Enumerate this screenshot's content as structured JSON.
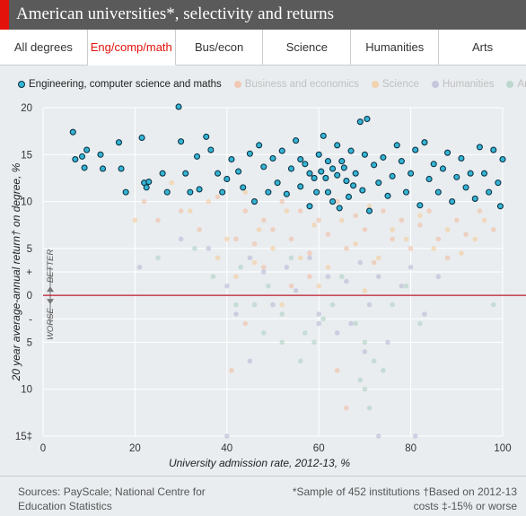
{
  "header": {
    "title": "American universities*, selectivity and returns"
  },
  "tabs": [
    {
      "label": "All degrees",
      "active": false
    },
    {
      "label": "Eng/comp/math",
      "active": true
    },
    {
      "label": "Bus/econ",
      "active": false
    },
    {
      "label": "Science",
      "active": false
    },
    {
      "label": "Humanities",
      "active": false
    },
    {
      "label": "Arts",
      "active": false
    }
  ],
  "colors": {
    "accent": "#e3120b",
    "highlight_fill": "#35b5d5",
    "highlight_stroke": "#0d3446",
    "business": "#f3b89a",
    "science": "#f6c891",
    "humanities": "#b7b3d3",
    "arts": "#a9cdbf",
    "zero_line": "#c0172a"
  },
  "chart_data": {
    "type": "scatter",
    "title": "American universities*, selectivity and returns",
    "xlabel": "University admission rate, 2012-13, %",
    "ylabel": "20 year average-annual return† on degree, %",
    "xlim": [
      0,
      100
    ],
    "ylim": [
      -15,
      20
    ],
    "x_ticks": [
      "0",
      "20",
      "40",
      "60",
      "80",
      "100"
    ],
    "y_ticks": [
      {
        "value": 20,
        "label": "20"
      },
      {
        "value": 15,
        "label": "15"
      },
      {
        "value": 10,
        "label": "10"
      },
      {
        "value": 5,
        "label": "5"
      },
      {
        "value": 2.5,
        "label": "+"
      },
      {
        "value": 0,
        "label": "0"
      },
      {
        "value": -2.5,
        "label": "-"
      },
      {
        "value": -5,
        "label": "5"
      },
      {
        "value": -10,
        "label": "10"
      },
      {
        "value": -15,
        "label": "15‡"
      }
    ],
    "better_label": "BETTER",
    "worse_label": "WORSE",
    "grid": true,
    "legend_position": "top",
    "highlighted_series": "Engineering, computer science and maths",
    "series": [
      {
        "name": "Engineering, computer science and maths",
        "key": "eng",
        "points": [
          [
            6.5,
            17.4
          ],
          [
            7,
            14.5
          ],
          [
            8.5,
            14.8
          ],
          [
            9,
            13.6
          ],
          [
            9.5,
            15.5
          ],
          [
            12.5,
            15
          ],
          [
            13,
            13.5
          ],
          [
            16.5,
            16.3
          ],
          [
            17,
            13.5
          ],
          [
            18,
            11
          ],
          [
            21.5,
            16.8
          ],
          [
            22,
            12
          ],
          [
            22.5,
            11.5
          ],
          [
            23,
            12.1
          ],
          [
            26,
            13
          ],
          [
            27,
            11
          ],
          [
            29.5,
            20.1
          ],
          [
            30,
            16.4
          ],
          [
            31,
            13
          ],
          [
            32,
            11
          ],
          [
            33.5,
            14.8
          ],
          [
            34,
            11.3
          ],
          [
            35.5,
            16.9
          ],
          [
            36.5,
            15.5
          ],
          [
            38,
            13
          ],
          [
            39,
            11
          ],
          [
            40,
            12.4
          ],
          [
            41,
            14.5
          ],
          [
            42.5,
            13.2
          ],
          [
            43.5,
            11.5
          ],
          [
            45,
            15.1
          ],
          [
            46,
            10
          ],
          [
            47,
            16
          ],
          [
            48,
            13.7
          ],
          [
            49,
            11
          ],
          [
            50,
            14.6
          ],
          [
            51,
            12
          ],
          [
            52,
            15.4
          ],
          [
            53,
            10.8
          ],
          [
            54,
            13.5
          ],
          [
            55,
            16.5
          ],
          [
            56,
            11.6
          ],
          [
            57,
            14
          ],
          [
            58,
            9.5
          ],
          [
            59,
            12.5
          ],
          [
            60,
            15
          ],
          [
            61,
            17
          ],
          [
            62,
            11
          ],
          [
            63,
            13.5
          ],
          [
            64,
            16
          ],
          [
            64.5,
            9.3
          ],
          [
            65,
            14.3
          ],
          [
            66,
            12.2
          ],
          [
            66.5,
            10.5
          ],
          [
            67,
            15.4
          ],
          [
            68,
            13
          ],
          [
            69,
            18.5
          ],
          [
            69.5,
            11.2
          ],
          [
            70,
            15
          ],
          [
            70.5,
            18.8
          ],
          [
            71,
            9
          ],
          [
            72,
            13.9
          ],
          [
            73,
            12
          ],
          [
            74,
            14.7
          ],
          [
            75,
            10.6
          ],
          [
            76,
            12.7
          ],
          [
            77,
            16
          ],
          [
            78,
            14.3
          ],
          [
            79,
            11
          ],
          [
            80,
            13
          ],
          [
            81,
            15.5
          ],
          [
            82,
            9.6
          ],
          [
            83,
            16.3
          ],
          [
            84,
            12.4
          ],
          [
            85,
            14
          ],
          [
            86,
            11
          ],
          [
            87,
            13.5
          ],
          [
            88,
            15.2
          ],
          [
            89,
            10
          ],
          [
            90,
            12.6
          ],
          [
            91,
            14.6
          ],
          [
            92,
            11.5
          ],
          [
            93,
            13
          ],
          [
            94,
            10.3
          ],
          [
            95,
            15.8
          ],
          [
            96,
            13
          ],
          [
            97,
            11
          ],
          [
            98,
            15.5
          ],
          [
            99,
            12
          ],
          [
            99.5,
            9.5
          ],
          [
            100,
            14.5
          ],
          [
            62,
            14.3
          ],
          [
            63,
            10
          ],
          [
            58,
            13
          ],
          [
            56,
            14.5
          ],
          [
            61.5,
            12.5
          ],
          [
            59.5,
            11
          ],
          [
            65.5,
            13.6
          ],
          [
            67.5,
            11.7
          ],
          [
            64,
            12.8
          ],
          [
            60.5,
            13.2
          ]
        ]
      },
      {
        "name": "Business and economics",
        "key": "bus",
        "points": [
          [
            22,
            10
          ],
          [
            25,
            8
          ],
          [
            30,
            9
          ],
          [
            34,
            7
          ],
          [
            38,
            10.5
          ],
          [
            42,
            6
          ],
          [
            44,
            9
          ],
          [
            46,
            5.5
          ],
          [
            48,
            8
          ],
          [
            50,
            7
          ],
          [
            52,
            10
          ],
          [
            54,
            6
          ],
          [
            56,
            9
          ],
          [
            58,
            4.5
          ],
          [
            60,
            8
          ],
          [
            62,
            6.5
          ],
          [
            64,
            10
          ],
          [
            66,
            5
          ],
          [
            68,
            8.5
          ],
          [
            70,
            7
          ],
          [
            72,
            3.5
          ],
          [
            74,
            9
          ],
          [
            76,
            6
          ],
          [
            78,
            8
          ],
          [
            80,
            5
          ],
          [
            82,
            7.5
          ],
          [
            84,
            9
          ],
          [
            86,
            6
          ],
          [
            88,
            4
          ],
          [
            90,
            8
          ],
          [
            92,
            6.5
          ],
          [
            95,
            9
          ],
          [
            98,
            7
          ],
          [
            44,
            -3
          ],
          [
            58,
            2
          ],
          [
            64,
            -8
          ],
          [
            66,
            -12
          ],
          [
            41,
            -8
          ],
          [
            48,
            3
          ],
          [
            54,
            1
          ]
        ]
      },
      {
        "name": "Science",
        "key": "sci",
        "points": [
          [
            20,
            8
          ],
          [
            28,
            12
          ],
          [
            32,
            9
          ],
          [
            36,
            10
          ],
          [
            40,
            6
          ],
          [
            44,
            11
          ],
          [
            47,
            7
          ],
          [
            50,
            5
          ],
          [
            53,
            9
          ],
          [
            56,
            4
          ],
          [
            59,
            7.5
          ],
          [
            62,
            3
          ],
          [
            65,
            8
          ],
          [
            68,
            5.5
          ],
          [
            71,
            9.5
          ],
          [
            73,
            4
          ],
          [
            76,
            7
          ],
          [
            79,
            6
          ],
          [
            82,
            8.5
          ],
          [
            85,
            5
          ],
          [
            88,
            7
          ],
          [
            91,
            4.5
          ],
          [
            94,
            6
          ],
          [
            96,
            8
          ],
          [
            38,
            4
          ],
          [
            42,
            2
          ],
          [
            46,
            3.5
          ],
          [
            60,
            1
          ],
          [
            52,
            -1
          ],
          [
            70,
            0.5
          ]
        ]
      },
      {
        "name": "Humanities",
        "key": "hum",
        "points": [
          [
            21,
            3
          ],
          [
            30,
            6
          ],
          [
            36,
            5
          ],
          [
            40,
            1
          ],
          [
            42,
            -2
          ],
          [
            45,
            4
          ],
          [
            48,
            2.5
          ],
          [
            50,
            -1
          ],
          [
            53,
            3
          ],
          [
            55,
            0.5
          ],
          [
            58,
            4
          ],
          [
            60,
            -2
          ],
          [
            62,
            2
          ],
          [
            64,
            -4
          ],
          [
            66,
            1.5
          ],
          [
            67,
            -3
          ],
          [
            69,
            3.5
          ],
          [
            71,
            -1
          ],
          [
            73,
            2
          ],
          [
            75,
            -5
          ],
          [
            78,
            1
          ],
          [
            80,
            3
          ],
          [
            83,
            -2
          ],
          [
            86,
            2
          ],
          [
            40,
            -15
          ],
          [
            73,
            -15
          ],
          [
            81,
            -15
          ],
          [
            60,
            -3
          ],
          [
            45,
            -7
          ],
          [
            70,
            -6
          ]
        ]
      },
      {
        "name": "Arts",
        "key": "art",
        "points": [
          [
            25,
            4
          ],
          [
            33,
            5
          ],
          [
            37,
            2
          ],
          [
            43,
            3
          ],
          [
            46,
            -1
          ],
          [
            49,
            1
          ],
          [
            52,
            -2
          ],
          [
            54,
            4
          ],
          [
            57,
            -4
          ],
          [
            59,
            -5
          ],
          [
            61,
            -2.5
          ],
          [
            63,
            -1
          ],
          [
            65,
            2
          ],
          [
            68,
            -3
          ],
          [
            70,
            -5
          ],
          [
            72,
            -7
          ],
          [
            74,
            -8
          ],
          [
            76,
            -1
          ],
          [
            79,
            1
          ],
          [
            82,
            -3
          ],
          [
            98,
            -1
          ],
          [
            69,
            -9
          ],
          [
            70,
            -10
          ],
          [
            71,
            -12
          ],
          [
            52,
            -5
          ],
          [
            48,
            -4
          ],
          [
            42,
            -1
          ],
          [
            56,
            -7
          ]
        ]
      }
    ]
  },
  "footer": {
    "source_line1": "Sources: PayScale; National Centre for",
    "source_line2": "Education Statistics",
    "note_line1": "*Sample of 452 institutions †Based on 2012-13",
    "note_line2": "costs ‡-15% or worse"
  }
}
